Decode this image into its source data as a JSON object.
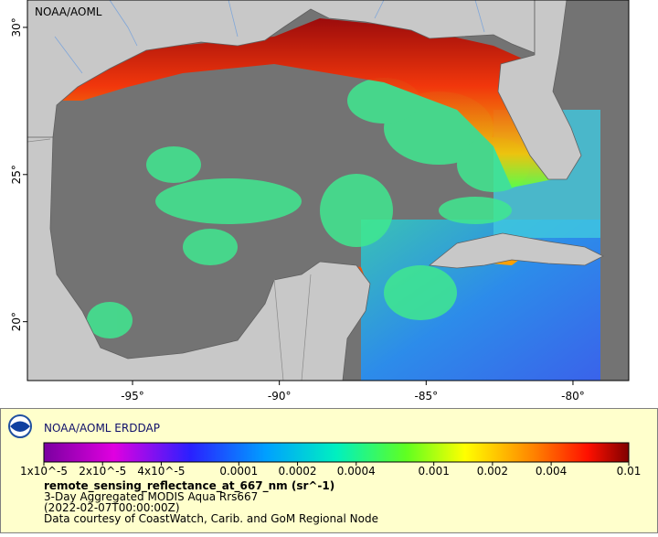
{
  "map": {
    "watermark": "NOAA/AOML",
    "lon_range": [
      -98.58,
      -78.1
    ],
    "lat_range": [
      18.0,
      30.93
    ],
    "lon_ticks": [
      {
        "value": -95,
        "label": "-95°"
      },
      {
        "value": -90,
        "label": "-90°"
      },
      {
        "value": -85,
        "label": "-85°"
      },
      {
        "value": -80,
        "label": "-80°"
      }
    ],
    "lat_ticks": [
      {
        "value": 20,
        "label": "20°"
      },
      {
        "value": 25,
        "label": "25°"
      },
      {
        "value": 30,
        "label": "30°"
      }
    ]
  },
  "legend": {
    "title": "NOAA/AOML ERDDAP",
    "colorbar": {
      "scale": "log",
      "range": [
        1e-05,
        0.01
      ],
      "ticks": [
        {
          "value": 1e-05,
          "label": "1x10^-5"
        },
        {
          "value": 2e-05,
          "label": "2x10^-5"
        },
        {
          "value": 4e-05,
          "label": "4x10^-5"
        },
        0.0001,
        0.0002,
        0.0004,
        0.001,
        0.002,
        0.004,
        0.01
      ]
    },
    "variable": "remote_sensing_reflectance_at_667_nm (sr^-1)",
    "lines": [
      "3-Day Aggregated MODIS Aqua Rrs667",
      "(2022-02-07T00:00:00Z)",
      "Data courtesy of CoastWatch, Carib. and GoM Regional Node"
    ]
  }
}
